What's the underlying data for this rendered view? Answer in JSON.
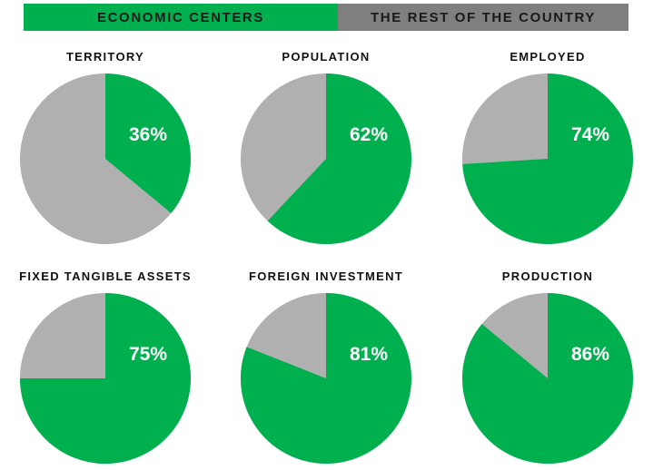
{
  "legend": [
    {
      "label": "ECONOMIC CENTERS",
      "color": "#00b04f"
    },
    {
      "label": "THE REST OF THE COUNTRY",
      "color": "#7f7f7f"
    }
  ],
  "rest_pie_color": "#b0b0b0",
  "chart_data": [
    {
      "type": "pie",
      "title": "TERRITORY",
      "categories": [
        "ECONOMIC CENTERS",
        "THE REST OF THE COUNTRY"
      ],
      "values": [
        36,
        64
      ],
      "label": "36%"
    },
    {
      "type": "pie",
      "title": "POPULATION",
      "categories": [
        "ECONOMIC CENTERS",
        "THE REST OF THE COUNTRY"
      ],
      "values": [
        62,
        38
      ],
      "label": "62%"
    },
    {
      "type": "pie",
      "title": "EMPLOYED",
      "categories": [
        "ECONOMIC CENTERS",
        "THE REST OF THE COUNTRY"
      ],
      "values": [
        74,
        26
      ],
      "label": "74%"
    },
    {
      "type": "pie",
      "title": "FIXED TANGIBLE ASSETS",
      "categories": [
        "ECONOMIC CENTERS",
        "THE REST OF THE COUNTRY"
      ],
      "values": [
        75,
        25
      ],
      "label": "75%"
    },
    {
      "type": "pie",
      "title": "FOREIGN INVESTMENT",
      "categories": [
        "ECONOMIC CENTERS",
        "THE REST OF THE COUNTRY"
      ],
      "values": [
        81,
        19
      ],
      "label": "81%"
    },
    {
      "type": "pie",
      "title": "PRODUCTION",
      "categories": [
        "ECONOMIC CENTERS",
        "THE REST OF THE COUNTRY"
      ],
      "values": [
        86,
        14
      ],
      "label": "86%"
    }
  ]
}
